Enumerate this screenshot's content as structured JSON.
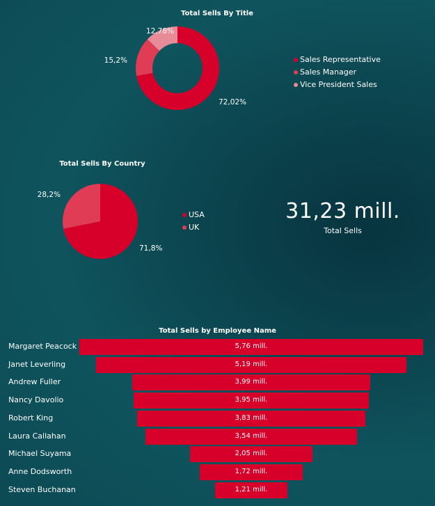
{
  "chart_data": [
    {
      "type": "pie",
      "variant": "donut",
      "title": "Total Sells By Title",
      "categories": [
        "Sales Representative",
        "Sales Manager",
        "Vice President Sales"
      ],
      "values": [
        72.02,
        15.2,
        12.78
      ],
      "labels": [
        "72,02%",
        "15,2%",
        "12,78%"
      ],
      "colors": [
        "#d6002a",
        "#e03c56",
        "#e88b98"
      ],
      "legend_position": "right"
    },
    {
      "type": "pie",
      "title": "Total Sells By Country",
      "categories": [
        "USA",
        "UK"
      ],
      "values": [
        71.8,
        28.2
      ],
      "labels": [
        "71,8%",
        "28,2%"
      ],
      "colors": [
        "#d6002a",
        "#e03c56"
      ],
      "legend_position": "right"
    },
    {
      "type": "bar",
      "variant": "funnel",
      "title": "Total Sells by Employee Name",
      "categories": [
        "Margaret Peacock",
        "Janet Leverling",
        "Andrew Fuller",
        "Nancy Davolio",
        "Robert King",
        "Laura Callahan",
        "Michael Suyama",
        "Anne Dodsworth",
        "Steven Buchanan"
      ],
      "values": [
        5.76,
        5.19,
        3.99,
        3.95,
        3.83,
        3.54,
        2.05,
        1.72,
        1.21
      ],
      "labels": [
        "5,76 mill.",
        "5,19 mill.",
        "3,99 mill.",
        "3,95 mill.",
        "3,83 mill.",
        "3,54 mill.",
        "2,05 mill.",
        "1,72 mill.",
        "1,21 mill."
      ],
      "unit": "mill.",
      "colors": [
        "#d6002a"
      ]
    }
  ],
  "kpi": {
    "value": "31,23 mill.",
    "label": "Total Sells"
  }
}
